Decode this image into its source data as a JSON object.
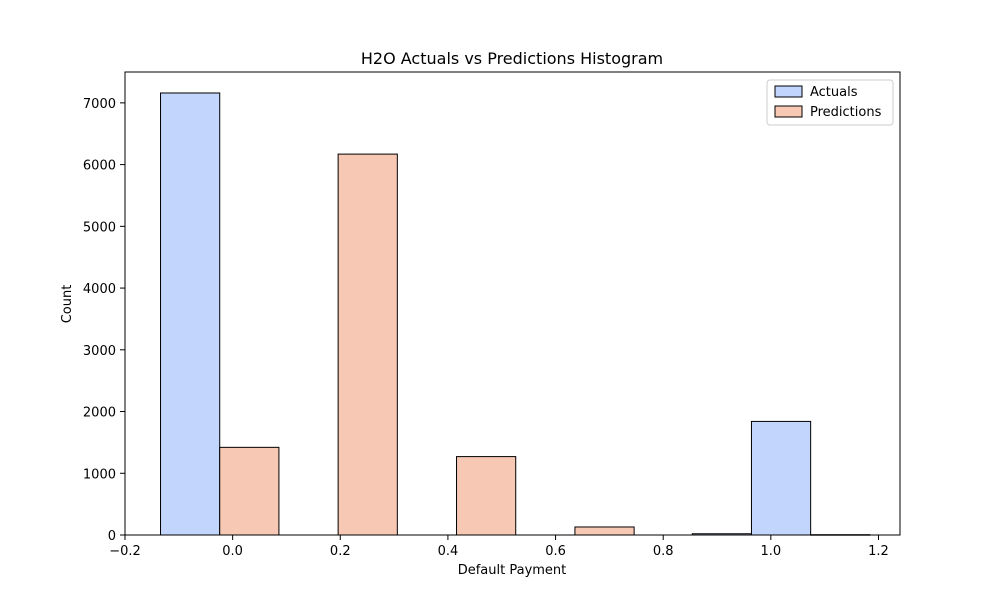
{
  "chart_data": {
    "type": "bar",
    "title": "H2O Actuals vs Predictions Histogram",
    "xlabel": "Default Payment",
    "ylabel": "Count",
    "xlim": [
      -0.2,
      1.24
    ],
    "ylim": [
      0,
      7500
    ],
    "xticks": [
      -0.2,
      0.0,
      0.2,
      0.4,
      0.6,
      0.8,
      1.0,
      1.2
    ],
    "xtick_labels": [
      "−0.2",
      "0.0",
      "0.2",
      "0.4",
      "0.6",
      "0.8",
      "1.0",
      "1.2"
    ],
    "yticks": [
      0,
      1000,
      2000,
      3000,
      4000,
      5000,
      6000,
      7000
    ],
    "ytick_labels": [
      "0",
      "1000",
      "2000",
      "3000",
      "4000",
      "5000",
      "6000",
      "7000"
    ],
    "grid": false,
    "legend_position": "top-right",
    "series": [
      {
        "name": "Actuals",
        "color": "#c2d5fc",
        "bins": [
          {
            "x0": -0.134,
            "x1": -0.024,
            "value": 7160
          },
          {
            "x0": 0.854,
            "x1": 0.964,
            "value": 20
          },
          {
            "x0": 0.964,
            "x1": 1.074,
            "value": 1840
          }
        ]
      },
      {
        "name": "Predictions",
        "color": "#f7c9b5",
        "bins": [
          {
            "x0": -0.024,
            "x1": 0.086,
            "value": 1420
          },
          {
            "x0": 0.196,
            "x1": 0.306,
            "value": 6170
          },
          {
            "x0": 0.416,
            "x1": 0.526,
            "value": 1270
          },
          {
            "x0": 0.636,
            "x1": 0.746,
            "value": 130
          },
          {
            "x0": 1.074,
            "x1": 1.184,
            "value": 5
          }
        ]
      }
    ]
  }
}
